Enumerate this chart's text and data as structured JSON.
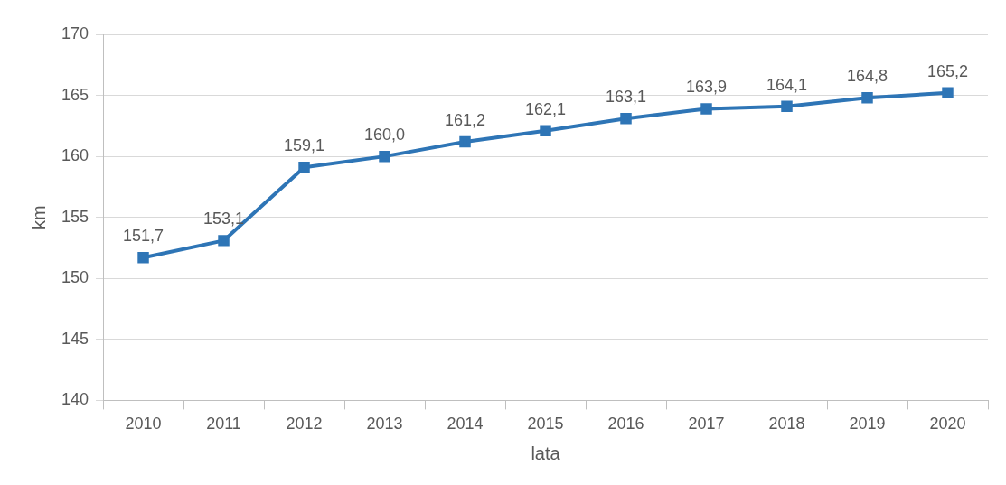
{
  "chart_data": {
    "type": "line",
    "xlabel": "lata",
    "ylabel": "km",
    "categories": [
      "2010",
      "2011",
      "2012",
      "2013",
      "2014",
      "2015",
      "2016",
      "2017",
      "2018",
      "2019",
      "2020"
    ],
    "series": [
      {
        "color": "#2e75b6",
        "values": [
          151.7,
          153.1,
          159.1,
          160.0,
          161.2,
          162.1,
          163.1,
          163.9,
          164.1,
          164.8,
          165.2
        ],
        "value_labels": [
          "151,7",
          "153,1",
          "159,1",
          "160,0",
          "161,2",
          "162,1",
          "163,1",
          "163,9",
          "164,1",
          "164,8",
          "165,2"
        ]
      }
    ],
    "ylim": [
      140,
      170
    ],
    "yticks": [
      140,
      145,
      150,
      155,
      160,
      165,
      170
    ],
    "grid": "y",
    "legend": false,
    "marker": "square",
    "line_style": "solid"
  }
}
